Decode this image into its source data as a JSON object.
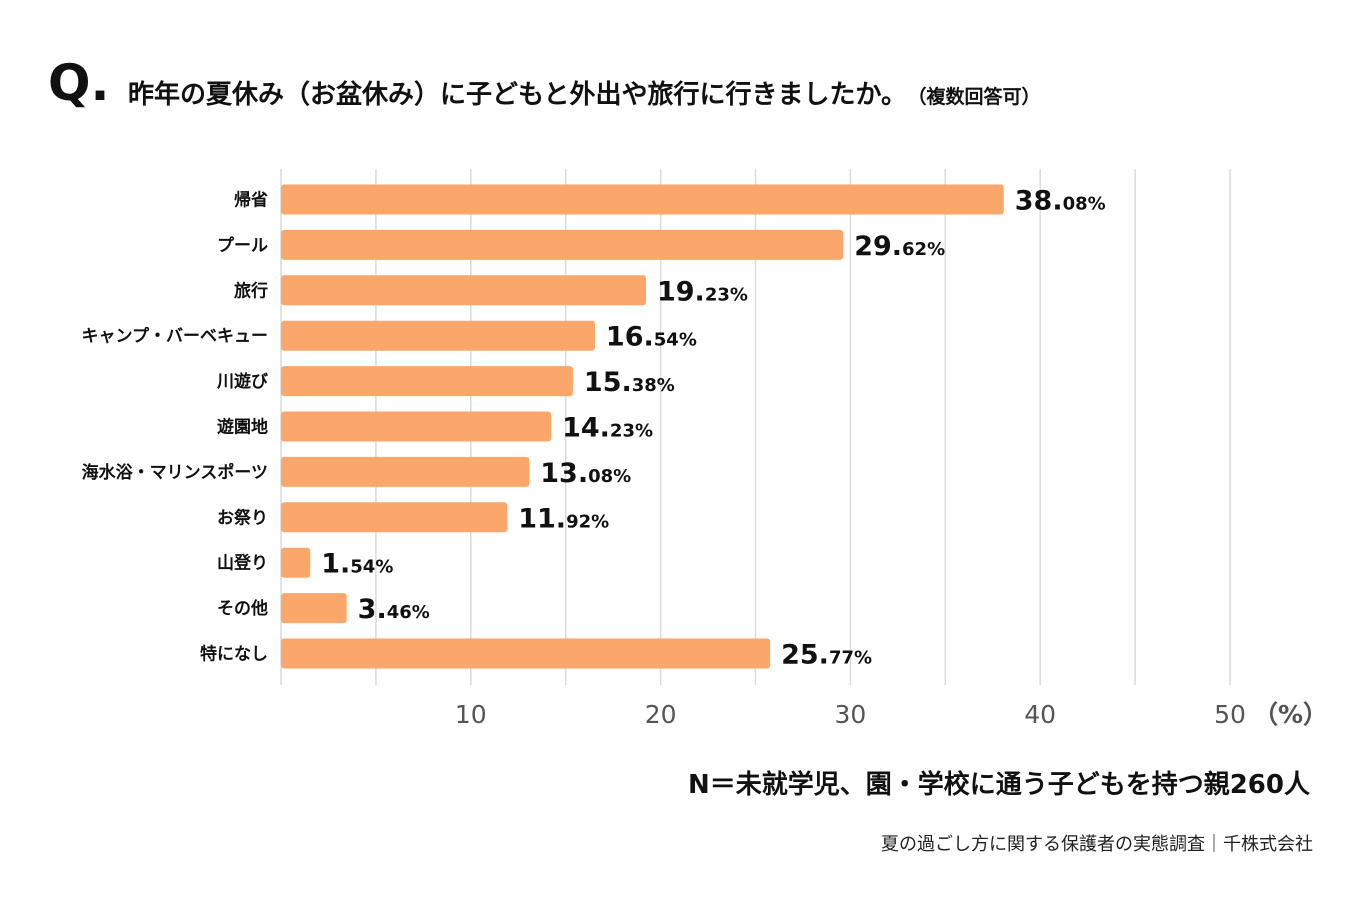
{
  "header": {
    "q_mark": "Q.",
    "question": "昨年の夏休み（お盆休み）に子どもと外出や旅行に行きましたか。",
    "note": "（複数回答可）"
  },
  "chart_data": {
    "type": "bar",
    "orientation": "horizontal",
    "title": "昨年の夏休み（お盆休み）に子どもと外出や旅行に行きましたか。（複数回答可）",
    "categories": [
      "帰省",
      "プール",
      "旅行",
      "キャンプ・バーベキュー",
      "川遊び",
      "遊園地",
      "海水浴・マリンスポーツ",
      "お祭り",
      "山登り",
      "その他",
      "特になし"
    ],
    "values": [
      38.08,
      29.62,
      19.23,
      16.54,
      15.38,
      14.23,
      13.08,
      11.92,
      1.54,
      3.46,
      25.77
    ],
    "value_labels": [
      {
        "int": "38.",
        "dec": "08%"
      },
      {
        "int": "29.",
        "dec": "62%"
      },
      {
        "int": "19.",
        "dec": "23%"
      },
      {
        "int": "16.",
        "dec": "54%"
      },
      {
        "int": "15.",
        "dec": "38%"
      },
      {
        "int": "14.",
        "dec": "23%"
      },
      {
        "int": "13.",
        "dec": "08%"
      },
      {
        "int": "11.",
        "dec": "92%"
      },
      {
        "int": "1.",
        "dec": "54%"
      },
      {
        "int": "3.",
        "dec": "46%"
      },
      {
        "int": "25.",
        "dec": "77%"
      }
    ],
    "xlim": [
      0,
      50
    ],
    "x_ticks": [
      10,
      20,
      30,
      40,
      50
    ],
    "minor_grid": [
      5,
      15,
      25,
      35,
      45
    ],
    "x_unit": "（%）",
    "grid": true,
    "bar_color": "#FBA66A",
    "grid_color": "#DADADA",
    "axis_color": "#E2E2E2",
    "tick_label_color": "#555555"
  },
  "footer": {
    "sample": "N＝未就学児、園・学校に通う子どもを持つ親260人",
    "source": "夏の過ごし方に関する保護者の実態調査｜千株式会社"
  }
}
